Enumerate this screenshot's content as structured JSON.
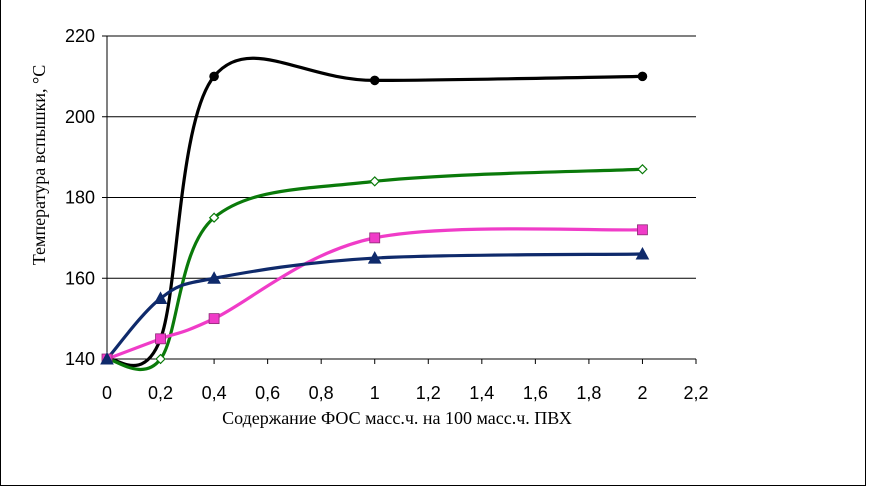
{
  "chart_data": {
    "type": "line",
    "title": "",
    "xlabel": "Содержание ФОС масс.ч. на 100 масс.ч. ПВХ",
    "ylabel": "Температура вспышки, °С",
    "xlim": [
      0,
      2.2
    ],
    "ylim": [
      140,
      220
    ],
    "x_tick_labels": [
      "0",
      "0,2",
      "0,4",
      "0,6",
      "0,8",
      "1",
      "1,2",
      "1,4",
      "1,6",
      "1,8",
      "2",
      "2,2"
    ],
    "y_tick_labels": [
      "140",
      "160",
      "180",
      "200",
      "220"
    ],
    "x_categories": [
      "0",
      "0,2",
      "0,4",
      "1",
      "2"
    ],
    "grid": "horizontal",
    "legend": "none",
    "series": [
      {
        "color": "#000000",
        "marker": "circle",
        "values": [
          140,
          145,
          210,
          209,
          210
        ]
      },
      {
        "color": "#0a7a0a",
        "marker": "diamond-open",
        "values": [
          140,
          140,
          175,
          184,
          187
        ]
      },
      {
        "color": "#f03cc8",
        "marker": "square",
        "values": [
          140,
          145,
          150,
          170,
          172
        ]
      },
      {
        "color": "#0f2a6b",
        "marker": "triangle",
        "values": [
          140,
          155,
          160,
          165,
          166
        ]
      }
    ]
  }
}
